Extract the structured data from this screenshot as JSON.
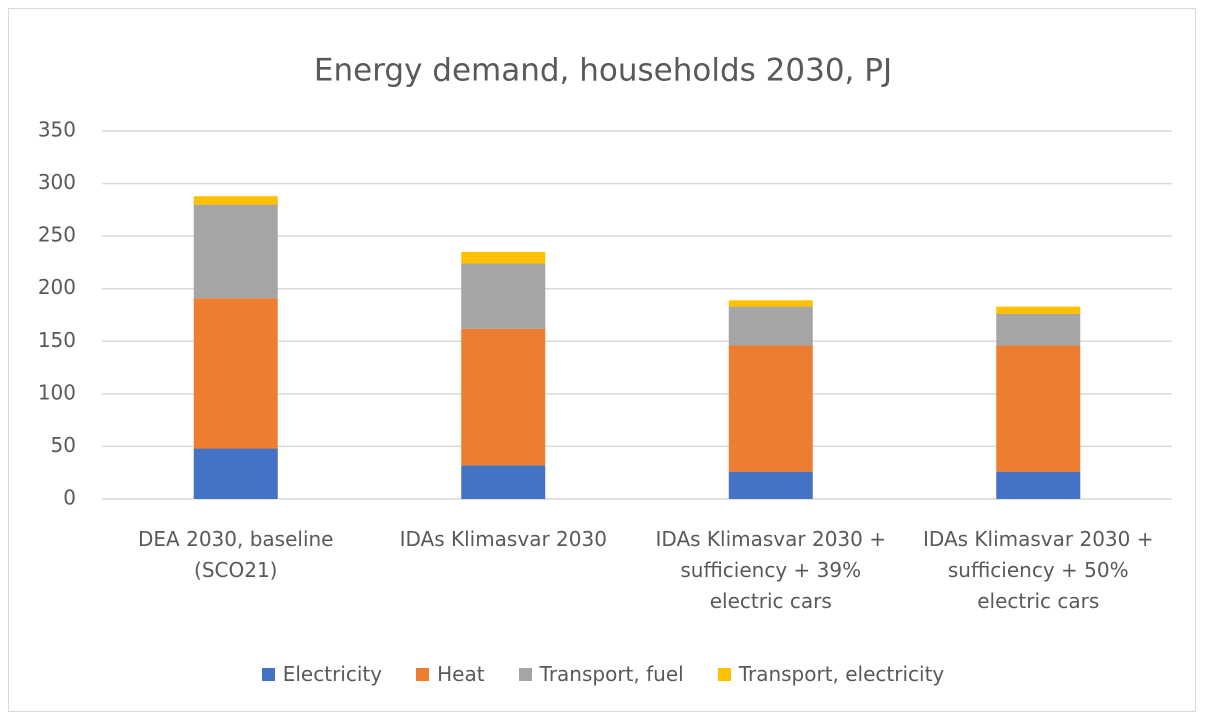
{
  "chart_data": {
    "type": "stacked_bar",
    "title": "Energy demand, households 2030, PJ",
    "categories": [
      "DEA 2030, baseline (SCO21)",
      "IDAs Klimasvar 2030",
      "IDAs Klimasvar 2030 + sufficiency + 39% electric cars",
      "IDAs Klimasvar 2030 + sufficiency + 50% electric cars"
    ],
    "series": [
      {
        "name": "Electricity",
        "color": "#4472c4",
        "values": [
          48,
          32,
          26,
          26
        ]
      },
      {
        "name": "Heat",
        "color": "#ed7d31",
        "values": [
          143,
          130,
          120,
          120
        ]
      },
      {
        "name": "Transport, fuel",
        "color": "#a5a5a5",
        "values": [
          89,
          62,
          37,
          30
        ]
      },
      {
        "name": "Transport, electricity",
        "color": "#ffc000",
        "values": [
          8,
          11,
          6,
          7
        ]
      }
    ],
    "ylim": [
      0,
      350
    ],
    "yticks": [
      0,
      50,
      100,
      150,
      200,
      250,
      300,
      350
    ],
    "grid": true,
    "legend": "bottom"
  }
}
